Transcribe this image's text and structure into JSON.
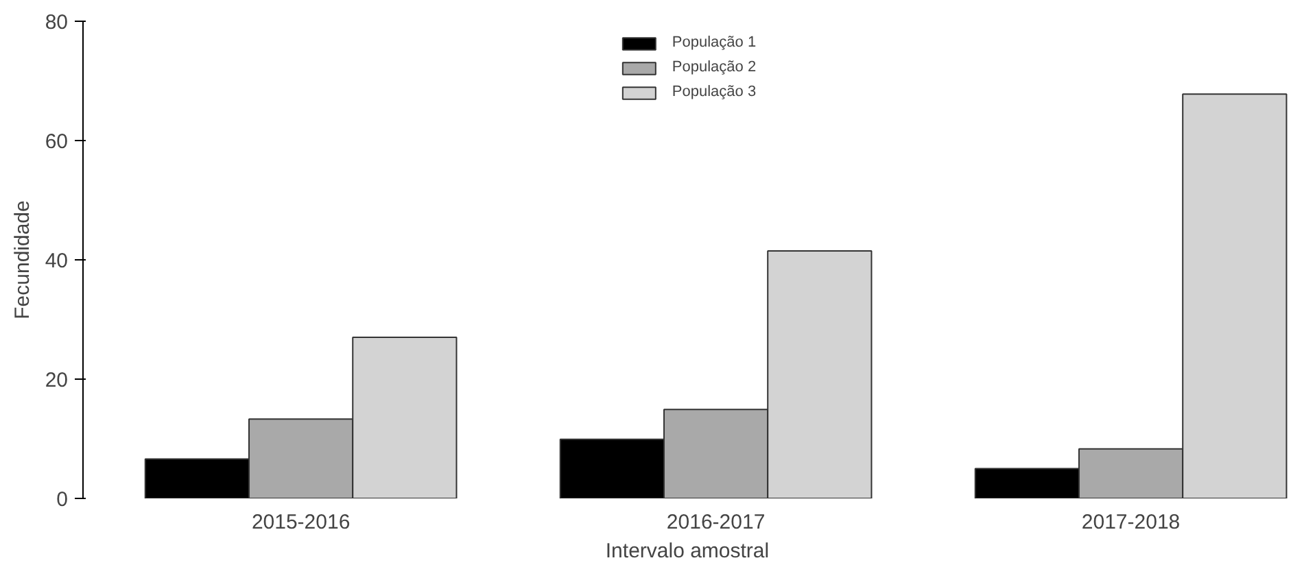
{
  "chart_data": {
    "type": "bar",
    "xlabel": "Intervalo amostral",
    "ylabel": "Fecundidade",
    "categories": [
      "2015-2016",
      "2016-2017",
      "2017-2018"
    ],
    "series": [
      {
        "name": "População 1",
        "color": "#000000",
        "values": [
          6.6,
          9.9,
          5.0
        ]
      },
      {
        "name": "População 2",
        "color": "#a9a9a9",
        "values": [
          13.3,
          14.9,
          8.3
        ]
      },
      {
        "name": "População 3",
        "color": "#d3d3d3",
        "values": [
          27.0,
          41.5,
          67.8
        ]
      }
    ],
    "ylim": [
      0,
      80
    ],
    "yticks": [
      0,
      20,
      40,
      60,
      80
    ],
    "grid": false,
    "legend": "top"
  }
}
